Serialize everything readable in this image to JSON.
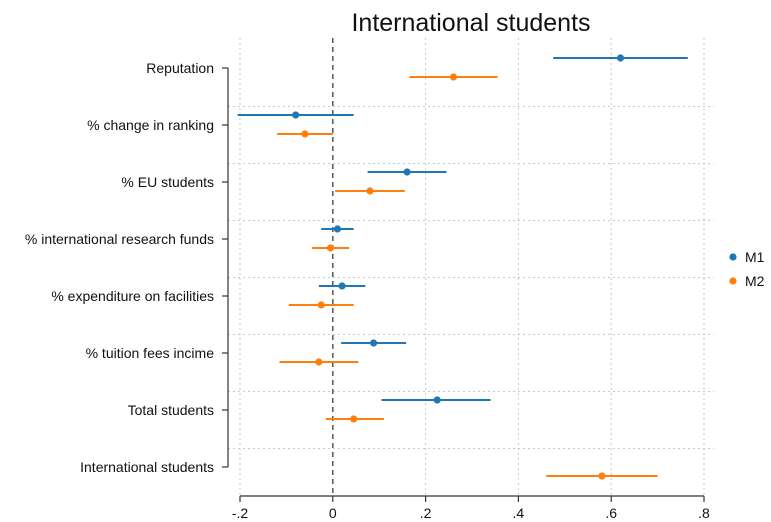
{
  "chart_data": {
    "type": "coefficient-plot",
    "title": "International students",
    "xlabel": "",
    "ylabel": "",
    "xlim": [
      -0.2,
      0.8
    ],
    "xticks": [
      -0.2,
      0,
      0.2,
      0.4,
      0.6,
      0.8
    ],
    "xtick_labels": [
      "-.2",
      "0",
      ".2",
      ".4",
      ".6",
      ".8"
    ],
    "reference_line": 0,
    "grid": true,
    "legend_position": "right",
    "categories": [
      "Reputation",
      "% change in ranking",
      "% EU students",
      "% international research funds",
      "% expenditure on facilities",
      "% tuition fees incime",
      "Total students",
      "International students"
    ],
    "series": [
      {
        "name": "M1",
        "color": "#1f77b4",
        "points": [
          {
            "estimate": 0.62,
            "lower": 0.475,
            "upper": 0.765
          },
          {
            "estimate": -0.08,
            "lower": -0.205,
            "upper": 0.045
          },
          {
            "estimate": 0.16,
            "lower": 0.075,
            "upper": 0.245
          },
          {
            "estimate": 0.01,
            "lower": -0.025,
            "upper": 0.045
          },
          {
            "estimate": 0.02,
            "lower": -0.03,
            "upper": 0.07
          },
          {
            "estimate": 0.088,
            "lower": 0.018,
            "upper": 0.158
          },
          {
            "estimate": 0.225,
            "lower": 0.105,
            "upper": 0.34
          },
          null
        ]
      },
      {
        "name": "M2",
        "color": "#ff7f0e",
        "points": [
          {
            "estimate": 0.26,
            "lower": 0.165,
            "upper": 0.355
          },
          {
            "estimate": -0.06,
            "lower": -0.12,
            "upper": 0.0
          },
          {
            "estimate": 0.08,
            "lower": 0.005,
            "upper": 0.155
          },
          {
            "estimate": -0.005,
            "lower": -0.045,
            "upper": 0.035
          },
          {
            "estimate": -0.025,
            "lower": -0.095,
            "upper": 0.045
          },
          {
            "estimate": -0.03,
            "lower": -0.115,
            "upper": 0.055
          },
          {
            "estimate": 0.045,
            "lower": -0.015,
            "upper": 0.11
          },
          {
            "estimate": 0.58,
            "lower": 0.46,
            "upper": 0.7
          }
        ]
      }
    ]
  }
}
